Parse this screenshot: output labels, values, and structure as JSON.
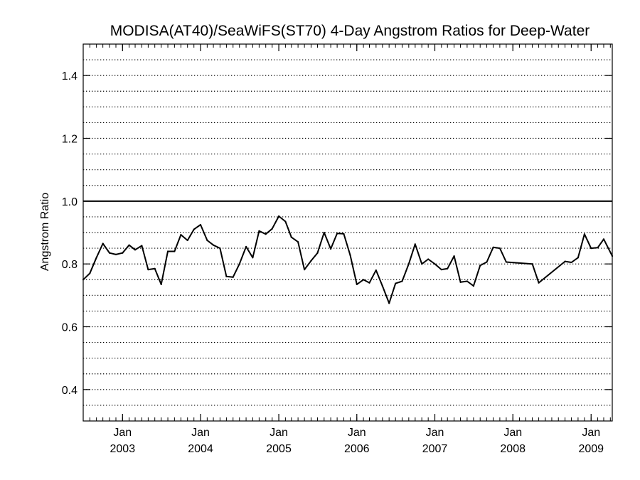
{
  "chart_data": {
    "type": "line",
    "title": "MODISA(AT40)/SeaWiFS(ST70) 4-Day Angstrom Ratios for Deep-Water",
    "xlabel": "",
    "ylabel": "Angstrom Ratio",
    "xlim": [
      "2002-07-01",
      "2009-04-10"
    ],
    "ylim": [
      0.3,
      1.5
    ],
    "grid": true,
    "yticks": [
      0.4,
      0.6,
      0.8,
      1.0,
      1.2,
      1.4
    ],
    "ytick_labels": [
      "0.4",
      "0.6",
      "0.8",
      "1.0",
      "1.2",
      "1.4"
    ],
    "xticks": [
      "2003-01-01",
      "2004-01-01",
      "2005-01-01",
      "2006-01-01",
      "2007-01-01",
      "2008-01-01",
      "2009-01-01"
    ],
    "xtick_labels": [
      {
        "month": "Jan",
        "year": "2003"
      },
      {
        "month": "Jan",
        "year": "2004"
      },
      {
        "month": "Jan",
        "year": "2005"
      },
      {
        "month": "Jan",
        "year": "2006"
      },
      {
        "month": "Jan",
        "year": "2007"
      },
      {
        "month": "Jan",
        "year": "2008"
      },
      {
        "month": "Jan",
        "year": "2009"
      }
    ],
    "reference_line": {
      "y": 1.0
    },
    "series": [
      {
        "color": "#000000",
        "points": [
          [
            "2002-07-01",
            0.75
          ],
          [
            "2002-08-01",
            0.77
          ],
          [
            "2002-09-01",
            0.82
          ],
          [
            "2002-10-01",
            0.865
          ],
          [
            "2002-11-01",
            0.835
          ],
          [
            "2002-12-01",
            0.83
          ],
          [
            "2003-01-01",
            0.835
          ],
          [
            "2003-02-01",
            0.86
          ],
          [
            "2003-03-01",
            0.845
          ],
          [
            "2003-04-01",
            0.858
          ],
          [
            "2003-05-01",
            0.782
          ],
          [
            "2003-06-01",
            0.785
          ],
          [
            "2003-07-01",
            0.735
          ],
          [
            "2003-08-01",
            0.84
          ],
          [
            "2003-09-01",
            0.84
          ],
          [
            "2003-10-01",
            0.893
          ],
          [
            "2003-11-01",
            0.875
          ],
          [
            "2003-12-01",
            0.91
          ],
          [
            "2004-01-01",
            0.925
          ],
          [
            "2004-02-01",
            0.875
          ],
          [
            "2004-03-01",
            0.86
          ],
          [
            "2004-04-01",
            0.85
          ],
          [
            "2004-05-01",
            0.76
          ],
          [
            "2004-06-01",
            0.758
          ],
          [
            "2004-07-01",
            0.8
          ],
          [
            "2004-08-01",
            0.855
          ],
          [
            "2004-09-01",
            0.82
          ],
          [
            "2004-10-01",
            0.905
          ],
          [
            "2004-11-01",
            0.895
          ],
          [
            "2004-12-01",
            0.912
          ],
          [
            "2005-01-01",
            0.952
          ],
          [
            "2005-02-01",
            0.935
          ],
          [
            "2005-03-01",
            0.885
          ],
          [
            "2005-04-01",
            0.87
          ],
          [
            "2005-05-01",
            0.782
          ],
          [
            "2005-06-01",
            0.81
          ],
          [
            "2005-07-01",
            0.835
          ],
          [
            "2005-08-01",
            0.9
          ],
          [
            "2005-09-01",
            0.848
          ],
          [
            "2005-10-01",
            0.897
          ],
          [
            "2005-11-01",
            0.896
          ],
          [
            "2005-12-01",
            0.828
          ],
          [
            "2006-01-01",
            0.735
          ],
          [
            "2006-02-01",
            0.75
          ],
          [
            "2006-03-01",
            0.74
          ],
          [
            "2006-04-01",
            0.78
          ],
          [
            "2006-05-01",
            0.73
          ],
          [
            "2006-06-01",
            0.675
          ],
          [
            "2006-07-01",
            0.738
          ],
          [
            "2006-08-01",
            0.745
          ],
          [
            "2006-09-01",
            0.8
          ],
          [
            "2006-10-01",
            0.863
          ],
          [
            "2006-11-01",
            0.8
          ],
          [
            "2006-12-01",
            0.815
          ],
          [
            "2007-01-01",
            0.8
          ],
          [
            "2007-02-01",
            0.782
          ],
          [
            "2007-03-01",
            0.785
          ],
          [
            "2007-04-01",
            0.825
          ],
          [
            "2007-05-01",
            0.742
          ],
          [
            "2007-06-01",
            0.745
          ],
          [
            "2007-07-01",
            0.73
          ],
          [
            "2007-08-01",
            0.795
          ],
          [
            "2007-09-01",
            0.806
          ],
          [
            "2007-10-01",
            0.853
          ],
          [
            "2007-11-01",
            0.85
          ],
          [
            "2007-12-01",
            0.806
          ],
          [
            "2008-04-01",
            0.8
          ],
          [
            "2008-05-01",
            0.74
          ],
          [
            "2008-09-01",
            0.808
          ],
          [
            "2008-10-01",
            0.805
          ],
          [
            "2008-11-01",
            0.82
          ],
          [
            "2008-12-01",
            0.895
          ],
          [
            "2009-01-01",
            0.85
          ],
          [
            "2009-02-01",
            0.852
          ],
          [
            "2009-03-01",
            0.879
          ],
          [
            "2009-04-10",
            0.825
          ]
        ]
      }
    ]
  }
}
